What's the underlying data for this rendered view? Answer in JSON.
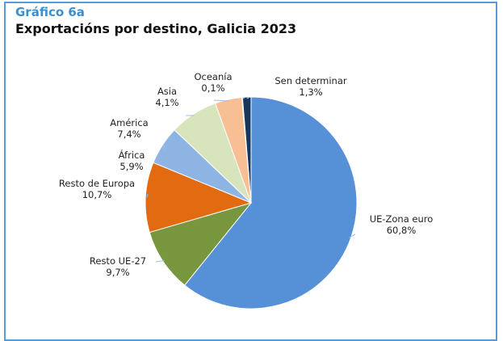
{
  "header": {
    "number": "Gráfico 6a",
    "title": "Exportacións por destino, Galicia 2023"
  },
  "chart_data": {
    "type": "pie",
    "title": "Exportacións por destino, Galicia 2023",
    "slices": [
      {
        "name": "UE-Zona euro",
        "value": 60.8,
        "value_label": "60,8%",
        "color": "#5690d7"
      },
      {
        "name": "Resto UE-27",
        "value": 9.7,
        "value_label": "9,7%",
        "color": "#77963d"
      },
      {
        "name": "Resto de Europa",
        "value": 10.7,
        "value_label": "10,7%",
        "color": "#e26a10"
      },
      {
        "name": "África",
        "value": 5.9,
        "value_label": "5,9%",
        "color": "#8eb4e3"
      },
      {
        "name": "América",
        "value": 7.4,
        "value_label": "7,4%",
        "color": "#d8e4bc"
      },
      {
        "name": "Asia",
        "value": 4.1,
        "value_label": "4,1%",
        "color": "#f8be94"
      },
      {
        "name": "Oceanía",
        "value": 0.1,
        "value_label": "0,1%",
        "color": "#000000"
      },
      {
        "name": "Sen determinar",
        "value": 1.3,
        "value_label": "1,3%",
        "color": "#17375e"
      }
    ]
  }
}
